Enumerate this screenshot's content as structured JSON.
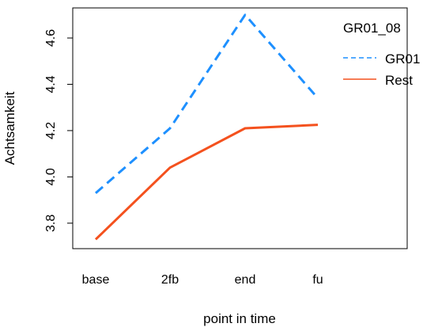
{
  "chart_data": {
    "type": "line",
    "title": "",
    "xlabel": "point in time",
    "ylabel": "Achtsamkeit",
    "categories": [
      "base",
      "2fb",
      "end",
      "fu"
    ],
    "ylim": [
      3.69,
      4.73
    ],
    "yticks": [
      3.8,
      4.0,
      4.2,
      4.4,
      4.6
    ],
    "ytick_labels": [
      "3.8",
      "4.0",
      "4.2",
      "4.4",
      "4.6"
    ],
    "grid": false,
    "legend": {
      "title": "GR01_08",
      "placement": "top-right",
      "entries": [
        {
          "label": "GR01",
          "color": "#1e90ff",
          "style": "dashed"
        },
        {
          "label": "Rest",
          "color": "#f4511e",
          "style": "solid"
        }
      ]
    },
    "series": [
      {
        "name": "GR01",
        "color": "#1e90ff",
        "style": "dashed",
        "values": [
          3.93,
          4.21,
          4.7,
          4.34
        ]
      },
      {
        "name": "Rest",
        "color": "#f4511e",
        "style": "solid",
        "values": [
          3.73,
          4.04,
          4.21,
          4.225
        ]
      }
    ]
  }
}
